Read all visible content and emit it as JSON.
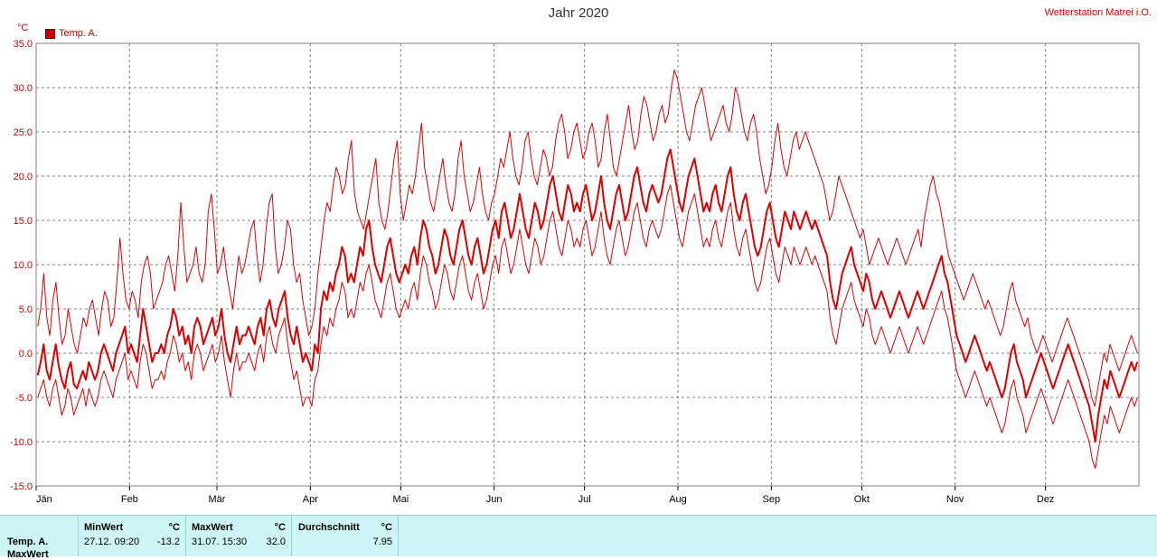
{
  "chart_data": {
    "type": "line",
    "title": "Jahr 2020",
    "station": "Wetterstation Matrei i.O.",
    "unit_label": "°C",
    "ylim": [
      -15,
      35
    ],
    "yticks": [
      "-15.0",
      "-10.0",
      "-5.0",
      "0.0",
      "5.0",
      "10.0",
      "15.0",
      "20.0",
      "25.0",
      "30.0",
      "35.0"
    ],
    "ytick_values": [
      -15,
      -10,
      -5,
      0,
      5,
      10,
      15,
      20,
      25,
      30,
      35
    ],
    "x_month_labels": [
      "Jän",
      "Feb",
      "Mär",
      "Apr",
      "Mai",
      "Jun",
      "Jul",
      "Aug",
      "Sep",
      "Okt",
      "Nov",
      "Dez"
    ],
    "x_month_start_days": [
      0,
      31,
      60,
      91,
      121,
      152,
      182,
      213,
      244,
      274,
      305,
      335
    ],
    "x_days": 366,
    "grid": true,
    "legend_position": "top-left",
    "legend": [
      {
        "name": "Temp. A.",
        "color": "#cc0000"
      }
    ],
    "series": [
      {
        "name": "Temp. A.",
        "role": "mean",
        "color": "#dd0000",
        "values": [
          -2.5,
          -1,
          1,
          -2,
          -3,
          -1,
          1,
          -1.5,
          -3,
          -4,
          -2,
          -1,
          -3.5,
          -4,
          -3,
          -2,
          -3,
          -1,
          -2,
          -3,
          -2,
          0,
          1,
          0,
          -1,
          -2,
          0,
          1,
          2,
          3,
          0,
          1,
          0,
          -1,
          2,
          5,
          3,
          1,
          -1,
          0,
          0,
          1,
          0,
          2,
          3,
          5,
          4,
          2,
          3,
          1,
          2,
          0,
          3,
          4,
          3,
          1,
          2,
          3,
          4,
          2,
          3,
          5,
          2,
          0,
          -1,
          1,
          3,
          1,
          2,
          2,
          3,
          2,
          1,
          3,
          4,
          2,
          5,
          6,
          4,
          3,
          5,
          6,
          7,
          4,
          2,
          1,
          3,
          1,
          -1,
          0,
          -1,
          -2,
          1,
          0,
          5,
          7,
          6,
          8,
          7,
          9,
          10,
          12,
          11,
          8,
          9,
          8,
          10,
          12,
          11,
          14,
          15,
          12,
          10,
          9,
          8,
          10,
          12,
          13,
          11,
          9,
          8,
          9,
          10,
          9,
          11,
          12,
          10,
          13,
          15,
          14,
          12,
          11,
          9,
          10,
          12,
          14,
          13,
          11,
          10,
          12,
          14,
          15,
          13,
          11,
          10,
          12,
          13,
          11,
          9,
          10,
          12,
          14,
          15,
          13,
          16,
          17,
          15,
          13,
          14,
          16,
          18,
          16,
          14,
          13,
          15,
          17,
          16,
          14,
          15,
          17,
          19,
          20,
          18,
          16,
          15,
          17,
          19,
          18,
          16,
          17,
          16,
          18,
          19,
          17,
          15,
          16,
          18,
          20,
          17,
          15,
          14,
          16,
          18,
          19,
          17,
          15,
          16,
          18,
          20,
          21,
          19,
          17,
          16,
          18,
          19,
          18,
          17,
          18,
          20,
          22,
          23,
          21,
          19,
          17,
          16,
          18,
          20,
          21,
          22,
          20,
          18,
          16,
          17,
          16,
          18,
          19,
          17,
          16,
          18,
          20,
          21,
          18,
          16,
          15,
          17,
          18,
          16,
          14,
          12,
          11,
          12,
          14,
          16,
          17,
          15,
          13,
          12,
          14,
          16,
          15,
          14,
          16,
          15,
          14,
          15,
          16,
          15,
          14,
          15,
          14,
          13,
          12,
          11,
          8,
          6,
          5,
          7,
          9,
          10,
          11,
          12,
          10,
          9,
          8,
          7,
          9,
          8,
          6,
          5,
          6,
          7,
          6,
          5,
          4,
          5,
          6,
          7,
          6,
          5,
          4,
          5,
          6,
          7,
          6,
          5,
          6,
          7,
          8,
          9,
          10,
          11,
          9,
          8,
          6,
          4,
          2,
          1,
          0,
          -1,
          0,
          1,
          2,
          1,
          0,
          -1,
          -2,
          -1,
          -2,
          -3,
          -4,
          -5,
          -4,
          -2,
          0,
          1,
          -1,
          -2,
          -3,
          -5,
          -4,
          -3,
          -2,
          -1,
          0,
          -1,
          -2,
          -3,
          -4,
          -3,
          -2,
          -1,
          0,
          1,
          0,
          -1,
          -2,
          -3,
          -4,
          -5,
          -6,
          -8,
          -10,
          -7,
          -5,
          -3,
          -4,
          -2,
          -3,
          -4,
          -5,
          -4,
          -3,
          -2,
          -1,
          -2,
          -1
        ]
      },
      {
        "name": "Temp. A. Max",
        "role": "max",
        "color": "#dd0000",
        "values": [
          3,
          5,
          9,
          4,
          2,
          6,
          8,
          4,
          1,
          2,
          5,
          3,
          1,
          0,
          2,
          4,
          3,
          5,
          6,
          4,
          2,
          5,
          7,
          6,
          3,
          4,
          8,
          13,
          9,
          6,
          5,
          7,
          6,
          4,
          8,
          10,
          11,
          9,
          5,
          6,
          7,
          8,
          10,
          11,
          9,
          7,
          11,
          17,
          12,
          8,
          9,
          10,
          12,
          9,
          8,
          10,
          16,
          18,
          14,
          9,
          10,
          12,
          9,
          7,
          5,
          8,
          11,
          9,
          10,
          12,
          14,
          15,
          11,
          8,
          10,
          14,
          17,
          18,
          12,
          9,
          10,
          12,
          15,
          14,
          10,
          8,
          9,
          6,
          4,
          2,
          3,
          5,
          9,
          12,
          15,
          17,
          16,
          19,
          21,
          20,
          18,
          19,
          22,
          24,
          18,
          16,
          15,
          14,
          16,
          18,
          20,
          22,
          17,
          15,
          14,
          16,
          19,
          22,
          24,
          18,
          15,
          17,
          19,
          18,
          20,
          23,
          26,
          21,
          19,
          17,
          16,
          18,
          20,
          22,
          19,
          17,
          16,
          18,
          22,
          24,
          20,
          18,
          16,
          17,
          19,
          21,
          18,
          16,
          15,
          17,
          18,
          20,
          22,
          21,
          23,
          25,
          22,
          20,
          19,
          21,
          24,
          25,
          22,
          20,
          19,
          21,
          23,
          22,
          20,
          21,
          24,
          26,
          27,
          25,
          22,
          23,
          25,
          26,
          24,
          22,
          23,
          25,
          26,
          24,
          21,
          22,
          25,
          27,
          24,
          21,
          20,
          22,
          24,
          26,
          28,
          25,
          23,
          24,
          27,
          29,
          28,
          26,
          24,
          25,
          27,
          28,
          26,
          27,
          30,
          32,
          31,
          29,
          27,
          25,
          24,
          26,
          28,
          29,
          30,
          28,
          26,
          24,
          25,
          26,
          27,
          28,
          26,
          25,
          27,
          30,
          29,
          27,
          25,
          24,
          26,
          27,
          25,
          22,
          20,
          18,
          19,
          21,
          24,
          26,
          23,
          21,
          20,
          22,
          24,
          25,
          23,
          24,
          25,
          24,
          23,
          22,
          21,
          20,
          19,
          17,
          15,
          16,
          18,
          20,
          19,
          18,
          17,
          16,
          15,
          14,
          13,
          14,
          12,
          10,
          11,
          12,
          13,
          12,
          11,
          10,
          11,
          12,
          13,
          12,
          11,
          10,
          11,
          12,
          13,
          14,
          12,
          15,
          17,
          19,
          20,
          18,
          17,
          15,
          13,
          11,
          10,
          9,
          8,
          7,
          6,
          7,
          8,
          9,
          8,
          7,
          6,
          5,
          6,
          5,
          4,
          3,
          2,
          3,
          5,
          7,
          8,
          6,
          5,
          4,
          3,
          4,
          2,
          1,
          0,
          1,
          2,
          1,
          0,
          -1,
          0,
          1,
          2,
          3,
          4,
          3,
          2,
          1,
          0,
          -1,
          -2,
          -3,
          -5,
          -6,
          -4,
          -2,
          0,
          -1,
          1,
          0,
          -1,
          -2,
          -1,
          0,
          1,
          2,
          1,
          0
        ]
      },
      {
        "name": "Temp. A. Min",
        "role": "min",
        "color": "#dd0000",
        "values": [
          -5,
          -4,
          -3,
          -5,
          -6,
          -4,
          -3,
          -5,
          -7,
          -6,
          -4,
          -5,
          -7,
          -6,
          -5,
          -4,
          -6,
          -4,
          -5,
          -6,
          -5,
          -3,
          -2,
          -3,
          -4,
          -5,
          -3,
          -2,
          -1,
          0,
          -3,
          -2,
          -3,
          -4,
          -1,
          1,
          0,
          -2,
          -4,
          -3,
          -3,
          -2,
          -3,
          -1,
          0,
          2,
          1,
          -1,
          0,
          -2,
          -1,
          -3,
          0,
          1,
          0,
          -2,
          -1,
          0,
          1,
          -1,
          0,
          2,
          -1,
          -3,
          -5,
          -2,
          0,
          -2,
          -1,
          -1,
          0,
          -1,
          -2,
          0,
          1,
          -1,
          2,
          3,
          1,
          0,
          2,
          3,
          4,
          1,
          -1,
          -3,
          -2,
          -4,
          -6,
          -5,
          -5,
          -6,
          -3,
          -2,
          1,
          3,
          2,
          4,
          3,
          5,
          6,
          8,
          7,
          4,
          5,
          4,
          6,
          8,
          7,
          9,
          10,
          8,
          6,
          5,
          4,
          6,
          8,
          9,
          7,
          5,
          4,
          5,
          6,
          5,
          7,
          8,
          6,
          9,
          11,
          10,
          8,
          7,
          5,
          6,
          8,
          10,
          9,
          7,
          6,
          8,
          10,
          11,
          9,
          7,
          6,
          8,
          9,
          7,
          5,
          6,
          8,
          10,
          11,
          9,
          12,
          13,
          11,
          9,
          10,
          12,
          14,
          12,
          10,
          9,
          11,
          13,
          12,
          10,
          11,
          13,
          15,
          16,
          14,
          12,
          11,
          13,
          15,
          14,
          12,
          13,
          12,
          14,
          15,
          13,
          11,
          12,
          14,
          16,
          13,
          11,
          10,
          12,
          14,
          15,
          13,
          11,
          12,
          14,
          16,
          17,
          15,
          13,
          12,
          14,
          15,
          14,
          13,
          14,
          16,
          18,
          19,
          17,
          15,
          13,
          12,
          14,
          16,
          17,
          18,
          16,
          14,
          12,
          13,
          12,
          14,
          15,
          13,
          12,
          14,
          16,
          17,
          14,
          12,
          11,
          13,
          14,
          12,
          10,
          8,
          7,
          8,
          10,
          12,
          13,
          11,
          9,
          8,
          10,
          12,
          11,
          10,
          12,
          11,
          10,
          11,
          12,
          11,
          10,
          11,
          10,
          9,
          8,
          7,
          4,
          2,
          1,
          3,
          5,
          6,
          7,
          8,
          6,
          5,
          4,
          3,
          5,
          4,
          2,
          1,
          2,
          3,
          2,
          1,
          0,
          1,
          2,
          3,
          2,
          1,
          0,
          1,
          2,
          3,
          2,
          1,
          2,
          3,
          4,
          5,
          6,
          7,
          5,
          4,
          2,
          0,
          -2,
          -3,
          -4,
          -5,
          -4,
          -3,
          -2,
          -3,
          -4,
          -5,
          -6,
          -5,
          -6,
          -7,
          -8,
          -9,
          -8,
          -6,
          -4,
          -3,
          -5,
          -6,
          -7,
          -9,
          -8,
          -7,
          -6,
          -5,
          -4,
          -5,
          -6,
          -7,
          -8,
          -7,
          -6,
          -5,
          -4,
          -3,
          -4,
          -5,
          -6,
          -7,
          -8,
          -9,
          -10,
          -12,
          -13,
          -11,
          -9,
          -7,
          -8,
          -6,
          -7,
          -8,
          -9,
          -8,
          -7,
          -6,
          -5,
          -6,
          -5
        ]
      }
    ]
  },
  "stats": {
    "row_label": "Temp. A.",
    "row_label2": "MaxWert",
    "min_header": "MinWert",
    "min_unit": "°C",
    "min_time": "27.12.  09:20",
    "min_value": "-13.2",
    "max_header": "MaxWert",
    "max_unit": "°C",
    "max_time": "31.07.  15:30",
    "max_value": "32.0",
    "avg_header": "Durchschnitt",
    "avg_unit": "°C",
    "avg_value": "7.95"
  },
  "colors": {
    "series": "#dd0000",
    "grid": "#808080",
    "axis_text": "#cc0000",
    "panel_bg": "#ccf5f3"
  }
}
